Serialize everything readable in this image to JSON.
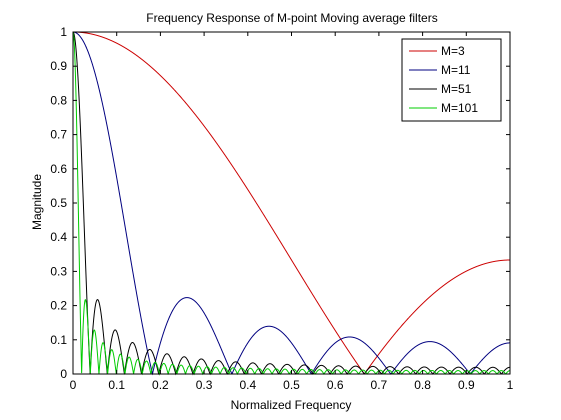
{
  "chart_data": {
    "type": "line",
    "title": "Frequency Response of M-point Moving average filters",
    "xlabel": "Normalized Frequency",
    "ylabel": "Magnitude",
    "xlim": [
      0,
      1
    ],
    "ylim": [
      0,
      1
    ],
    "xticks": [
      0,
      0.1,
      0.2,
      0.3,
      0.4,
      0.5,
      0.6,
      0.7,
      0.8,
      0.9,
      1
    ],
    "xticklabels": [
      "0",
      "0.1",
      "0.2",
      "0.3",
      "0.4",
      "0.5",
      "0.6",
      "0.7",
      "0.8",
      "0.9",
      "1"
    ],
    "yticks": [
      0,
      0.1,
      0.2,
      0.3,
      0.4,
      0.5,
      0.6,
      0.7,
      0.8,
      0.9,
      1
    ],
    "yticklabels": [
      "0",
      "0.1",
      "0.2",
      "0.3",
      "0.4",
      "0.5",
      "0.6",
      "0.7",
      "0.8",
      "0.9",
      "1"
    ],
    "grid": false,
    "legend_position": "top-right",
    "function": "|sin(M*pi*f/2) / (M*sin(pi*f/2))|",
    "series": [
      {
        "name": "M=3",
        "M": 3,
        "color": "#cc0000"
      },
      {
        "name": "M=11",
        "M": 11,
        "color": "#000080"
      },
      {
        "name": "M=51",
        "M": 51,
        "color": "#000000"
      },
      {
        "name": "M=101",
        "M": 101,
        "color": "#00cc00"
      }
    ]
  }
}
